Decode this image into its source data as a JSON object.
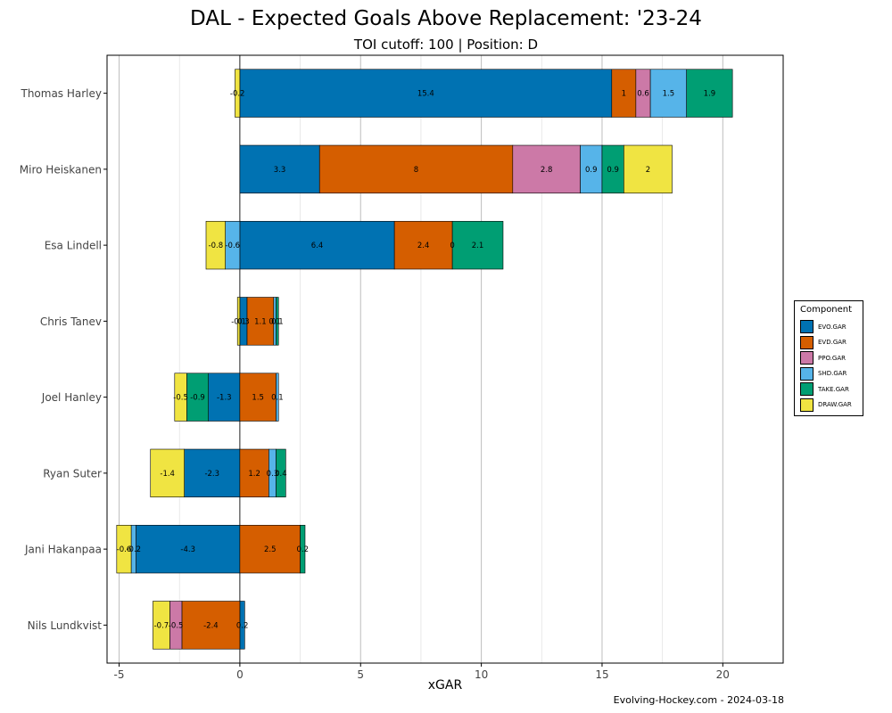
{
  "chart_data": {
    "type": "bar",
    "orientation": "horizontal",
    "stacked": true,
    "title": "DAL - Expected Goals Above Replacement: '23-24",
    "subtitle": "TOI cutoff: 100 | Position: D",
    "xlabel": "xGAR",
    "ylabel": "",
    "xlim": [
      -5.5,
      22.5
    ],
    "x_ticks": [
      -5,
      0,
      5,
      10,
      15,
      20
    ],
    "grid": true,
    "legend_title": "Component",
    "legend_position": "right",
    "caption": "Evolving-Hockey.com - 2024-03-18",
    "categories": [
      "Thomas Harley",
      "Miro Heiskanen",
      "Esa Lindell",
      "Chris Tanev",
      "Joel Hanley",
      "Ryan Suter",
      "Jani Hakanpaa",
      "Nils Lundkvist"
    ],
    "series": [
      {
        "name": "EVO.GAR",
        "color": "#0072B2",
        "values": [
          15.4,
          3.3,
          6.4,
          0.3,
          -1.3,
          -2.3,
          -4.3,
          0.2
        ]
      },
      {
        "name": "EVD.GAR",
        "color": "#D55E00",
        "values": [
          1,
          8,
          2.4,
          1.1,
          1.5,
          1.2,
          2.5,
          -2.4
        ]
      },
      {
        "name": "PPO.GAR",
        "color": "#CC79A7",
        "values": [
          0.6,
          2.8,
          0,
          0,
          0,
          0,
          0,
          -0.5
        ]
      },
      {
        "name": "SHD.GAR",
        "color": "#56B4E9",
        "values": [
          1.5,
          0.9,
          -0.6,
          0.1,
          0.1,
          0.3,
          -0.2,
          0
        ]
      },
      {
        "name": "TAKE.GAR",
        "color": "#009E73",
        "values": [
          1.9,
          0.9,
          2.1,
          0.1,
          -0.9,
          0.4,
          0.2,
          0
        ]
      },
      {
        "name": "DRAW.GAR",
        "color": "#F0E442",
        "values": [
          -0.2,
          2,
          -0.8,
          -0.1,
          -0.5,
          -1.4,
          -0.6,
          -0.7
        ]
      }
    ],
    "data_labels": [
      [
        {
          "s": 5,
          "t": "-0.2"
        },
        {
          "s": 0,
          "t": "15.4"
        },
        {
          "s": 1,
          "t": "1"
        },
        {
          "s": 2,
          "t": "0.6"
        },
        {
          "s": 3,
          "t": "1.5"
        },
        {
          "s": 4,
          "t": "1.9"
        }
      ],
      [
        {
          "s": 0,
          "t": "3.3"
        },
        {
          "s": 1,
          "t": "8"
        },
        {
          "s": 2,
          "t": "2.8"
        },
        {
          "s": 3,
          "t": "0.9"
        },
        {
          "s": 4,
          "t": "0.9"
        },
        {
          "s": 5,
          "t": "2"
        }
      ],
      [
        {
          "s": 5,
          "t": "-0.8"
        },
        {
          "s": 3,
          "t": "-0.6"
        },
        {
          "s": 0,
          "t": "6.4"
        },
        {
          "s": 1,
          "t": "2.4"
        },
        {
          "s": 2,
          "t": "0"
        },
        {
          "s": 4,
          "t": "2.1"
        }
      ],
      [
        {
          "s": 5,
          "t": "-0.1"
        },
        {
          "s": 0,
          "t": "0.3"
        },
        {
          "s": 1,
          "t": "1.1"
        },
        {
          "s": 3,
          "t": "0.1"
        },
        {
          "s": 4,
          "t": "0.1"
        }
      ],
      [
        {
          "s": 5,
          "t": "-0.5"
        },
        {
          "s": 4,
          "t": "-0.9"
        },
        {
          "s": 0,
          "t": "-1.3"
        },
        {
          "s": 1,
          "t": "1.5"
        },
        {
          "s": 3,
          "t": "0.1"
        }
      ],
      [
        {
          "s": 5,
          "t": "-1.4"
        },
        {
          "s": 0,
          "t": "-2.3"
        },
        {
          "s": 1,
          "t": "1.2"
        },
        {
          "s": 3,
          "t": "0.3"
        },
        {
          "s": 4,
          "t": "0.4"
        }
      ],
      [
        {
          "s": 5,
          "t": "-0.6"
        },
        {
          "s": 3,
          "t": "-0.2"
        },
        {
          "s": 0,
          "t": "-4.3"
        },
        {
          "s": 1,
          "t": "2.5"
        },
        {
          "s": 4,
          "t": "0.2"
        }
      ],
      [
        {
          "s": 5,
          "t": "-0.7"
        },
        {
          "s": 2,
          "t": "-0.5"
        },
        {
          "s": 1,
          "t": "-2.4"
        },
        {
          "s": 0,
          "t": "0.2"
        }
      ]
    ]
  }
}
